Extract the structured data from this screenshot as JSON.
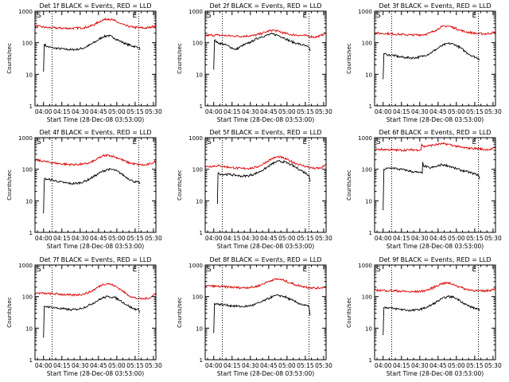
{
  "colors": {
    "events": "#000000",
    "lld": "#dd0000",
    "axes": "#000000",
    "background": "#ffffff"
  },
  "shared_axes": {
    "ylabel": "Counts/sec",
    "xlabel": "Start Time (28-Dec-08 03:53:00)",
    "x_ticks": [
      "04:00",
      "04:15",
      "04:30",
      "04:45",
      "05:00",
      "05:15",
      "05:30"
    ],
    "y_ticks": [
      "1",
      "10",
      "100",
      "1000"
    ],
    "start_marker": "S",
    "end_marker": "E"
  },
  "chart_data": [
    {
      "type": "line",
      "title": "Det 1f BLACK = Events, RED = LLD",
      "x_unit": "minutes since 03:53:00",
      "xlim": [
        0,
        99
      ],
      "ylim": [
        1,
        1000
      ],
      "yscale": "log",
      "vlines": [
        14,
        85
      ],
      "grid": false,
      "series": [
        {
          "name": "BLACK = Events",
          "x": [
            7,
            7.6,
            10,
            15,
            20,
            25,
            30,
            35,
            40,
            45,
            50,
            55,
            60,
            65,
            70,
            75,
            80,
            85,
            86
          ],
          "values": [
            12,
            90,
            75,
            68,
            65,
            62,
            60,
            62,
            68,
            85,
            110,
            150,
            170,
            140,
            110,
            90,
            78,
            72,
            60
          ]
        },
        {
          "name": "RED = LLD",
          "x": [
            0,
            5,
            10,
            20,
            30,
            40,
            45,
            50,
            55,
            60,
            65,
            70,
            75,
            80,
            85,
            90,
            95,
            99
          ],
          "values": [
            340,
            320,
            300,
            290,
            285,
            300,
            330,
            400,
            520,
            580,
            500,
            400,
            340,
            310,
            300,
            290,
            310,
            360
          ]
        }
      ]
    },
    {
      "type": "line",
      "title": "Det 2f BLACK = Events, RED = LLD",
      "x_unit": "minutes since 03:53:00",
      "xlim": [
        0,
        99
      ],
      "ylim": [
        1,
        1000
      ],
      "yscale": "log",
      "vlines": [
        14,
        85
      ],
      "grid": false,
      "series": [
        {
          "name": "BLACK = Events",
          "x": [
            7,
            7.6,
            10,
            15,
            20,
            25,
            30,
            35,
            40,
            45,
            50,
            55,
            60,
            65,
            70,
            75,
            80,
            85,
            86
          ],
          "values": [
            14,
            120,
            100,
            90,
            75,
            60,
            80,
            95,
            120,
            150,
            170,
            190,
            170,
            140,
            110,
            95,
            85,
            70,
            55
          ]
        },
        {
          "name": "RED = LLD",
          "x": [
            0,
            10,
            20,
            30,
            40,
            45,
            50,
            55,
            60,
            65,
            70,
            75,
            80,
            85,
            90,
            95,
            99
          ],
          "values": [
            170,
            175,
            165,
            160,
            170,
            190,
            220,
            250,
            230,
            200,
            180,
            175,
            170,
            160,
            150,
            170,
            210
          ]
        }
      ]
    },
    {
      "type": "line",
      "title": "Det 3f BLACK = Events, RED = LLD",
      "x_unit": "minutes since 03:53:00",
      "xlim": [
        0,
        99
      ],
      "ylim": [
        1,
        1000
      ],
      "yscale": "log",
      "vlines": [
        14,
        85
      ],
      "grid": false,
      "series": [
        {
          "name": "BLACK = Events",
          "x": [
            7,
            7.6,
            10,
            15,
            20,
            25,
            30,
            35,
            40,
            45,
            50,
            55,
            60,
            65,
            70,
            75,
            80,
            85,
            86
          ],
          "values": [
            7,
            45,
            42,
            40,
            36,
            34,
            33,
            34,
            38,
            45,
            60,
            80,
            95,
            90,
            70,
            50,
            38,
            32,
            28
          ]
        },
        {
          "name": "RED = LLD",
          "x": [
            0,
            10,
            20,
            30,
            40,
            45,
            50,
            55,
            60,
            65,
            70,
            75,
            80,
            85,
            90,
            95,
            99
          ],
          "values": [
            200,
            195,
            185,
            175,
            180,
            200,
            250,
            320,
            340,
            300,
            250,
            220,
            205,
            195,
            190,
            200,
            215
          ]
        }
      ]
    },
    {
      "type": "line",
      "title": "Det 4f BLACK = Events, RED = LLD",
      "x_unit": "minutes since 03:53:00",
      "xlim": [
        0,
        99
      ],
      "ylim": [
        1,
        1000
      ],
      "yscale": "log",
      "vlines": [
        14,
        85
      ],
      "grid": false,
      "series": [
        {
          "name": "BLACK = Events",
          "x": [
            7,
            7.6,
            10,
            15,
            20,
            25,
            30,
            35,
            40,
            45,
            50,
            55,
            60,
            65,
            70,
            75,
            80,
            85,
            86
          ],
          "values": [
            4,
            50,
            48,
            45,
            40,
            37,
            35,
            36,
            40,
            50,
            65,
            85,
            100,
            95,
            75,
            55,
            42,
            38,
            35
          ]
        },
        {
          "name": "RED = LLD",
          "x": [
            0,
            10,
            20,
            30,
            40,
            45,
            50,
            55,
            60,
            65,
            70,
            75,
            80,
            85,
            90,
            95,
            99
          ],
          "values": [
            200,
            170,
            150,
            140,
            145,
            160,
            200,
            260,
            280,
            250,
            210,
            170,
            150,
            140,
            135,
            150,
            180
          ]
        }
      ]
    },
    {
      "type": "line",
      "title": "Det 5f BLACK = Events, RED = LLD",
      "x_unit": "minutes since 03:53:00",
      "xlim": [
        0,
        99
      ],
      "ylim": [
        1,
        1000
      ],
      "yscale": "log",
      "vlines": [
        14,
        85
      ],
      "grid": false,
      "series": [
        {
          "name": "BLACK = Events",
          "x": [
            10,
            10.5,
            13,
            20,
            25,
            30,
            35,
            40,
            45,
            50,
            55,
            60,
            65,
            70,
            75,
            80,
            85,
            86
          ],
          "values": [
            8,
            75,
            70,
            68,
            65,
            60,
            62,
            70,
            85,
            110,
            150,
            180,
            170,
            140,
            110,
            85,
            65,
            40
          ]
        },
        {
          "name": "RED = LLD",
          "x": [
            0,
            10,
            20,
            30,
            40,
            45,
            50,
            55,
            60,
            65,
            70,
            75,
            80,
            85,
            90,
            95,
            99
          ],
          "values": [
            120,
            130,
            115,
            105,
            110,
            130,
            170,
            220,
            250,
            220,
            180,
            150,
            130,
            115,
            105,
            110,
            140
          ]
        }
      ]
    },
    {
      "type": "line",
      "title": "Det 6f BLACK = Events, RED = LLD",
      "x_unit": "minutes since 03:53:00",
      "xlim": [
        0,
        99
      ],
      "ylim": [
        1,
        1000
      ],
      "yscale": "log",
      "vlines": [
        14,
        85
      ],
      "grid": false,
      "series": [
        {
          "name": "BLACK = Events",
          "x": [
            7,
            7.6,
            10,
            15,
            20,
            25,
            30,
            35,
            39,
            39.5,
            40,
            45,
            50,
            55,
            60,
            65,
            70,
            75,
            80,
            85,
            86
          ],
          "values": [
            5,
            100,
            105,
            110,
            100,
            95,
            85,
            80,
            75,
            170,
            130,
            110,
            120,
            140,
            130,
            110,
            95,
            85,
            75,
            65,
            48
          ]
        },
        {
          "name": "RED = LLD",
          "x": [
            0,
            10,
            20,
            30,
            38,
            38.5,
            40,
            45,
            50,
            55,
            60,
            65,
            70,
            75,
            80,
            85,
            90,
            95,
            99
          ],
          "values": [
            430,
            420,
            400,
            410,
            410,
            620,
            520,
            560,
            600,
            640,
            620,
            560,
            500,
            470,
            460,
            450,
            420,
            430,
            470
          ]
        }
      ]
    },
    {
      "type": "line",
      "title": "Det 7f BLACK = Events, RED = LLD",
      "x_unit": "minutes since 03:53:00",
      "xlim": [
        0,
        99
      ],
      "ylim": [
        1,
        1000
      ],
      "yscale": "log",
      "vlines": [
        14,
        85
      ],
      "grid": false,
      "series": [
        {
          "name": "BLACK = Events",
          "x": [
            7,
            7.6,
            10,
            15,
            20,
            25,
            30,
            35,
            40,
            45,
            50,
            55,
            60,
            65,
            70,
            75,
            80,
            85,
            86
          ],
          "values": [
            5,
            50,
            48,
            45,
            42,
            40,
            38,
            40,
            45,
            55,
            70,
            90,
            100,
            95,
            75,
            55,
            42,
            38,
            32
          ]
        },
        {
          "name": "RED = LLD",
          "x": [
            0,
            10,
            20,
            30,
            40,
            45,
            50,
            55,
            60,
            65,
            70,
            75,
            80,
            85,
            90,
            95,
            99
          ],
          "values": [
            130,
            125,
            120,
            110,
            120,
            140,
            180,
            240,
            260,
            220,
            170,
            120,
            95,
            85,
            85,
            95,
            130
          ]
        }
      ]
    },
    {
      "type": "line",
      "title": "Det 8f BLACK = Events, RED = LLD",
      "x_unit": "minutes since 03:53:00",
      "xlim": [
        0,
        99
      ],
      "ylim": [
        1,
        1000
      ],
      "yscale": "log",
      "vlines": [
        14,
        85
      ],
      "grid": false,
      "series": [
        {
          "name": "BLACK = Events",
          "x": [
            7,
            7.6,
            10,
            15,
            20,
            25,
            30,
            35,
            40,
            45,
            50,
            55,
            60,
            65,
            70,
            75,
            80,
            85,
            86
          ],
          "values": [
            7,
            60,
            58,
            55,
            52,
            50,
            48,
            50,
            55,
            65,
            80,
            100,
            110,
            100,
            80,
            65,
            55,
            48,
            25
          ]
        },
        {
          "name": "RED = LLD",
          "x": [
            0,
            10,
            20,
            30,
            40,
            45,
            50,
            55,
            60,
            65,
            70,
            75,
            80,
            85,
            90,
            95,
            99
          ],
          "values": [
            220,
            210,
            200,
            190,
            200,
            230,
            280,
            340,
            360,
            320,
            270,
            230,
            210,
            195,
            185,
            190,
            210
          ]
        }
      ]
    },
    {
      "type": "line",
      "title": "Det 9f BLACK = Events, RED = LLD",
      "x_unit": "minutes since 03:53:00",
      "xlim": [
        0,
        99
      ],
      "ylim": [
        1,
        1000
      ],
      "yscale": "log",
      "vlines": [
        14,
        85
      ],
      "grid": false,
      "series": [
        {
          "name": "BLACK = Events",
          "x": [
            7,
            7.6,
            10,
            15,
            20,
            25,
            30,
            35,
            40,
            45,
            50,
            55,
            60,
            65,
            70,
            75,
            80,
            85,
            86
          ],
          "values": [
            6,
            45,
            45,
            42,
            40,
            38,
            36,
            38,
            42,
            50,
            65,
            85,
            100,
            95,
            75,
            55,
            45,
            40,
            35
          ]
        },
        {
          "name": "RED = LLD",
          "x": [
            0,
            10,
            20,
            30,
            40,
            45,
            50,
            55,
            60,
            65,
            70,
            75,
            80,
            85,
            90,
            95,
            99
          ],
          "values": [
            160,
            155,
            150,
            140,
            150,
            170,
            210,
            260,
            270,
            240,
            200,
            170,
            160,
            150,
            150,
            160,
            180
          ]
        }
      ]
    }
  ]
}
